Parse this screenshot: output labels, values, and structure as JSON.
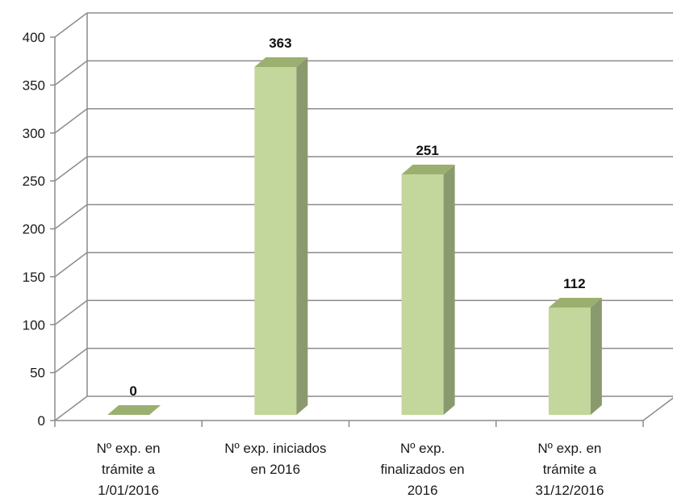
{
  "chart_data": {
    "type": "bar",
    "style": "3d-column",
    "categories": [
      [
        "Nº exp. en",
        "trámite a",
        "1/01/2016"
      ],
      [
        "Nº exp. iniciados",
        "en 2016"
      ],
      [
        "Nº exp.",
        "finalizados en",
        "2016"
      ],
      [
        "Nº exp. en",
        "trámite a",
        "31/12/2016"
      ]
    ],
    "values": [
      0,
      363,
      251,
      112
    ],
    "data_labels": [
      "0",
      "363",
      "251",
      "112"
    ],
    "ylim": [
      0,
      400
    ],
    "yticks": [
      0,
      50,
      100,
      150,
      200,
      250,
      300,
      350,
      400
    ],
    "title": "",
    "xlabel": "",
    "ylabel": "",
    "grid": true,
    "legend": "none",
    "colors": {
      "bar_front": "#c3d69b",
      "bar_top": "#9bb070",
      "bar_side": "#8b9a6e",
      "bar_edge": "#8a9a66",
      "grid": "#8c8c8c",
      "axis": "#8c8c8c"
    }
  }
}
